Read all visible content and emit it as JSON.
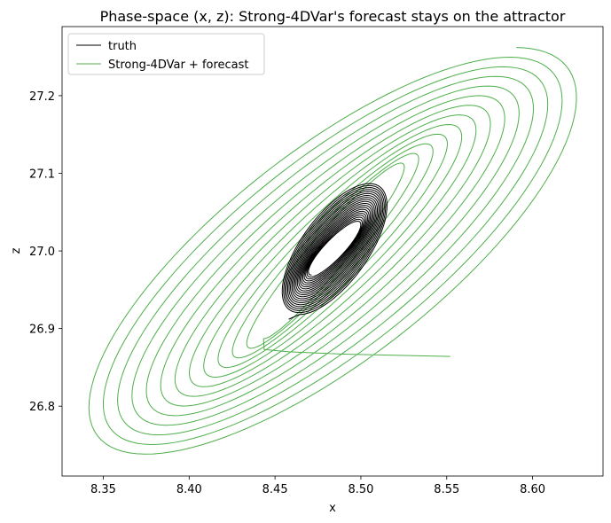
{
  "chart_data": {
    "type": "line",
    "title": "Phase-space (x, z): Strong-4DVar's forecast stays on the attractor",
    "xlabel": "x",
    "ylabel": "z",
    "xlim": [
      8.326,
      8.641
    ],
    "ylim": [
      26.71,
      27.289
    ],
    "xticks": [
      "8.35",
      "8.40",
      "8.45",
      "8.50",
      "8.55",
      "8.60"
    ],
    "yticks": [
      "26.8",
      "26.9",
      "27.0",
      "27.1",
      "27.2"
    ],
    "grid": false,
    "legend_position": "top-left",
    "series": [
      {
        "name": "truth",
        "color": "#000000",
        "spiral": {
          "center_x": 8.4845,
          "center_z": 27.003,
          "x_amp_start": 0.031,
          "x_amp_end": 0.015,
          "z_amp_start": 0.085,
          "z_amp_end": 0.034,
          "phase_lag_start": 0.85,
          "phase_lag_end": 0.5,
          "turns": 20,
          "start_point": [
            8.458,
            26.912
          ]
        }
      },
      {
        "name": "Strong-4DVar + forecast",
        "color": "#4daf4a",
        "initial_segment": [
          [
            8.552,
            26.864
          ],
          [
            8.49,
            26.867
          ],
          [
            8.458,
            26.87
          ],
          [
            8.4437,
            26.873
          ]
        ],
        "spiral": {
          "center_x": 8.4815,
          "center_z": 26.997,
          "x_amp_start": 0.04,
          "x_amp_end": 0.145,
          "z_amp_start": 0.11,
          "z_amp_end": 0.265,
          "phase_lag_start": 0.3,
          "phase_lag_end": 0.72,
          "turns": 12.5,
          "end_point": [
            8.476,
            26.791
          ]
        }
      }
    ]
  }
}
